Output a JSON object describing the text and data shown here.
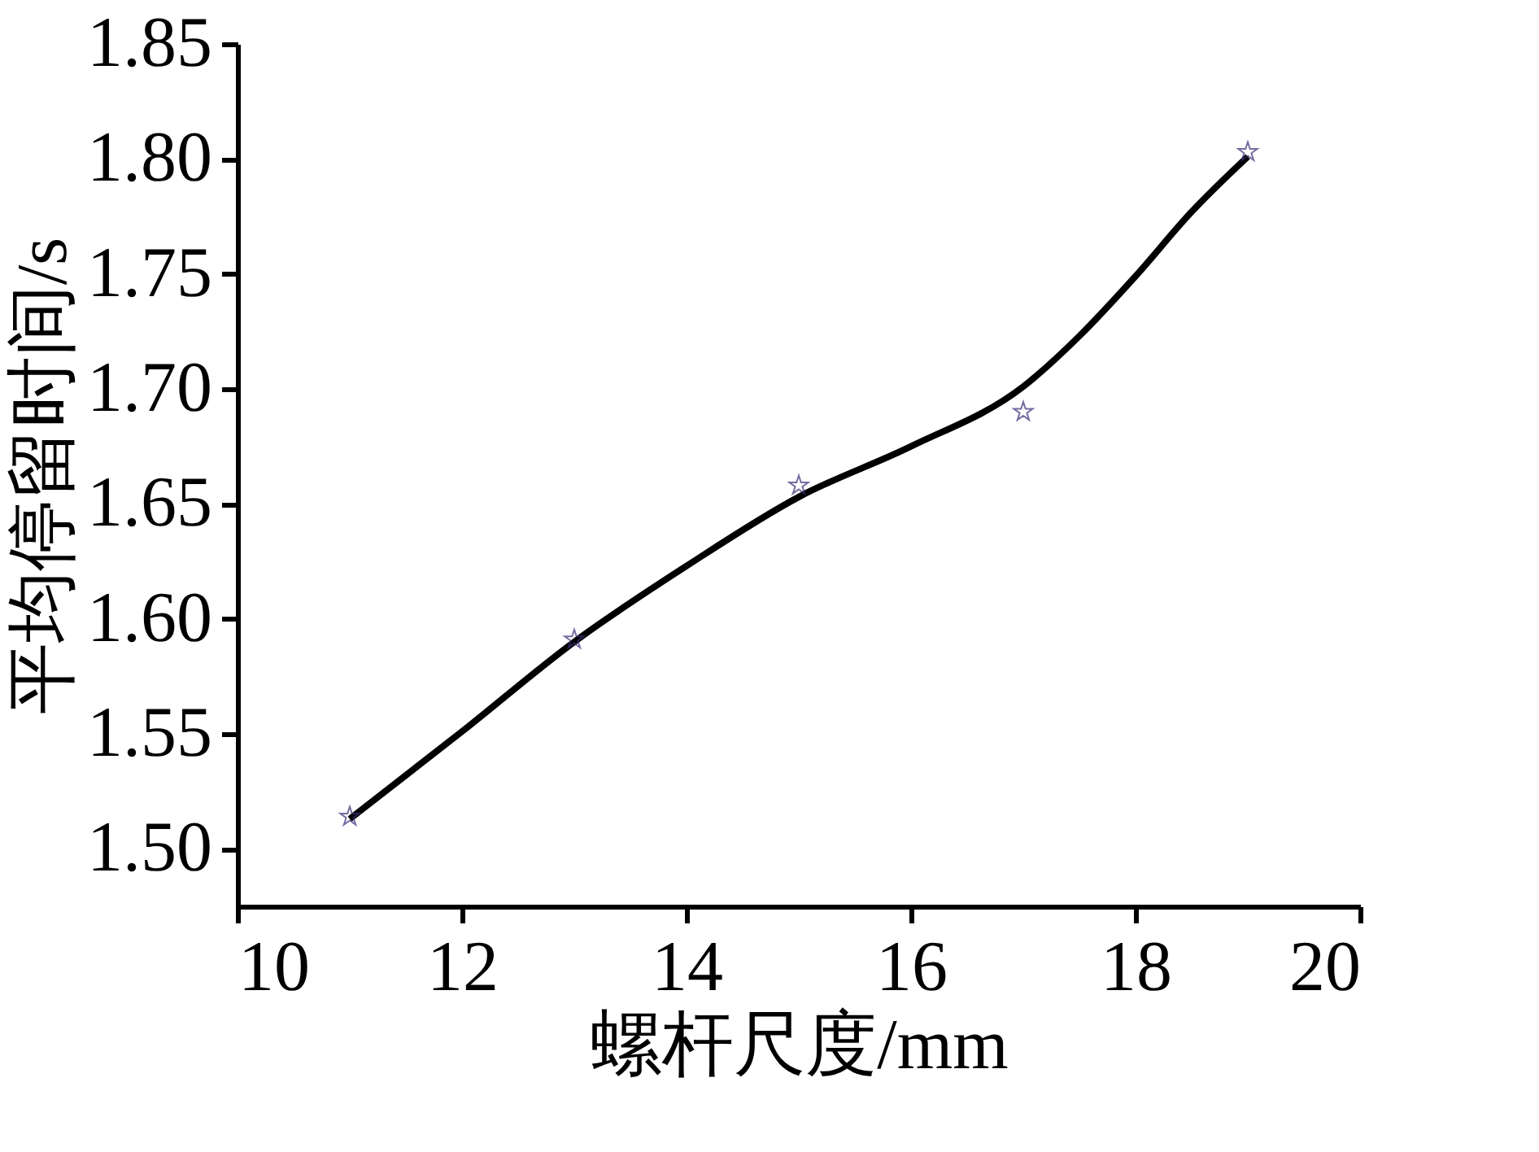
{
  "chart_data": {
    "type": "scatter",
    "xlabel": "螺杆尺度/mm",
    "ylabel": "平均停留时间/s",
    "x": [
      11,
      13,
      15,
      17,
      19
    ],
    "series": [
      {
        "color": "#3c2f7a",
        "marker": "star",
        "values": [
          1.514,
          1.591,
          1.658,
          1.69,
          1.803
        ]
      },
      {
        "type": "line",
        "color": "#000000",
        "marker": "none",
        "line_style": "solid",
        "x": [
          11,
          12,
          13,
          14,
          15,
          16,
          17,
          17.5,
          18,
          18.5,
          19
        ],
        "values": [
          1.513,
          1.551,
          1.59,
          1.623,
          1.653,
          1.675,
          1.701,
          1.723,
          1.749,
          1.777,
          1.801
        ]
      }
    ],
    "xlim": [
      10,
      20
    ],
    "xticks": [
      10,
      12,
      14,
      16,
      18,
      20
    ],
    "ylim": [
      1.475,
      1.85
    ],
    "yticks": [
      {
        "value": 1.5,
        "label": "1.50"
      },
      {
        "value": 1.55,
        "label": "1.55"
      },
      {
        "value": 1.6,
        "label": "1.60"
      },
      {
        "value": 1.65,
        "label": "1.65"
      },
      {
        "value": 1.7,
        "label": "1.70"
      },
      {
        "value": 1.75,
        "label": "1.75"
      },
      {
        "value": 1.8,
        "label": "1.80"
      },
      {
        "value": 1.85,
        "label": "1.85"
      }
    ],
    "grid": false
  }
}
